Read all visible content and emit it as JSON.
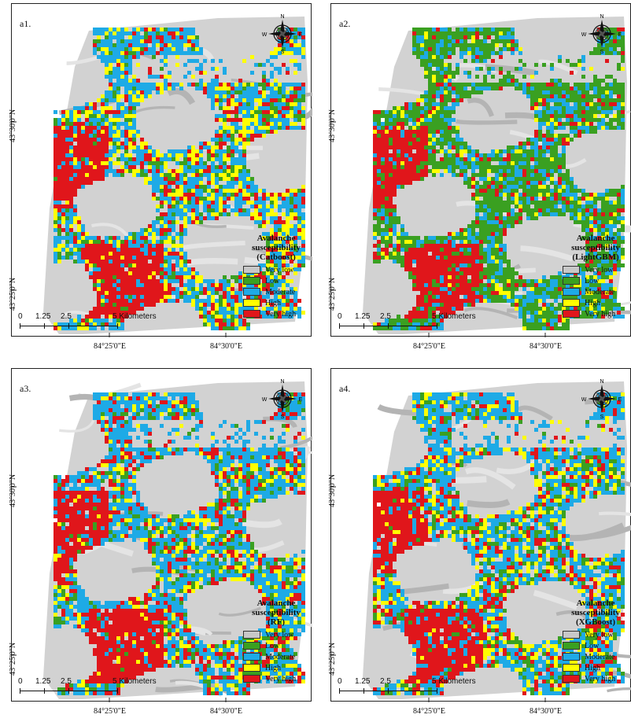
{
  "legend": {
    "title": "Avalanche susceptibility",
    "classes": [
      {
        "label": "Very low",
        "color": "#c8c8c8"
      },
      {
        "label": "Low",
        "color": "#3aa021"
      },
      {
        "label": "Moderate",
        "color": "#1eaae6"
      },
      {
        "label": "High",
        "color": "#ffff00"
      },
      {
        "label": "Very high",
        "color": "#e0161b"
      }
    ]
  },
  "panels": [
    {
      "label": "a1.",
      "model": "(Catboost)"
    },
    {
      "label": "a2.",
      "model": "(LightGBM)"
    },
    {
      "label": "a3.",
      "model": "(RF)"
    },
    {
      "label": "a4.",
      "model": "(XGBoost)"
    }
  ],
  "coordinates": {
    "lat_top": "43°30'0\"N",
    "lat_bottom": "43°25'0\"N",
    "lon_left": "84°25'0\"E",
    "lon_right": "84°30'0\"E"
  },
  "compass": {
    "n": "N",
    "s": "S",
    "e": "E",
    "w": "W"
  },
  "scalebar": {
    "ticks": [
      "0",
      "1.25",
      "2.5",
      "5 Kilometers"
    ]
  }
}
